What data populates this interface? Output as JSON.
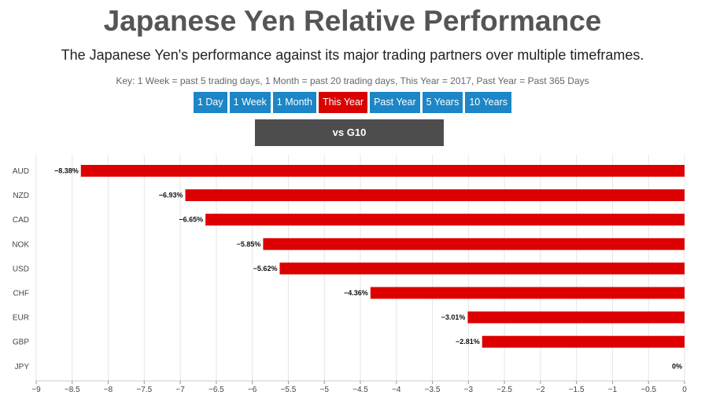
{
  "header": {
    "title": "Japanese Yen Relative Performance",
    "subtitle": "The Japanese Yen's performance against its major trading partners over multiple timeframes.",
    "key": "Key: 1 Week = past 5 trading days, 1 Month = past 20 trading days, This Year = 2017, Past Year = Past 365 Days"
  },
  "tabs": [
    {
      "label": "1 Day",
      "active": false
    },
    {
      "label": "1 Week",
      "active": false
    },
    {
      "label": "1 Month",
      "active": false
    },
    {
      "label": "This Year",
      "active": true
    },
    {
      "label": "Past Year",
      "active": false
    },
    {
      "label": "5 Years",
      "active": false
    },
    {
      "label": "10 Years",
      "active": false
    }
  ],
  "group_button": {
    "label": "vs G10"
  },
  "colors": {
    "bar": "#dd0000",
    "tab": "#1c86c6",
    "tab_active": "#d90000",
    "grid": "#e6e6e6"
  },
  "chart_data": {
    "type": "bar",
    "orientation": "horizontal",
    "title": "Japanese Yen Relative Performance",
    "categories": [
      "AUD",
      "NZD",
      "CAD",
      "NOK",
      "USD",
      "CHF",
      "EUR",
      "GBP",
      "JPY"
    ],
    "values": [
      -8.38,
      -6.93,
      -6.65,
      -5.85,
      -5.62,
      -4.36,
      -3.01,
      -2.81,
      0
    ],
    "data_labels": [
      "−8.38%",
      "−6.93%",
      "−6.65%",
      "−5.85%",
      "−5.62%",
      "−4.36%",
      "−3.01%",
      "−2.81%",
      "0%"
    ],
    "xlim": [
      -9,
      0
    ],
    "xticks": [
      -9,
      -8.5,
      -8,
      -7.5,
      -7,
      -6.5,
      -6,
      -5.5,
      -5,
      -4.5,
      -4,
      -3.5,
      -3,
      -2.5,
      -2,
      -1.5,
      -1,
      -0.5,
      0
    ],
    "xtick_labels": [
      "−9",
      "−8.5",
      "−8",
      "−7.5",
      "−7",
      "−6.5",
      "−6",
      "−5.5",
      "−5",
      "−4.5",
      "−4",
      "−3.5",
      "−3",
      "−2.5",
      "−2",
      "−1.5",
      "−1",
      "−0.5",
      "0"
    ],
    "grid": true,
    "legend": "none"
  }
}
